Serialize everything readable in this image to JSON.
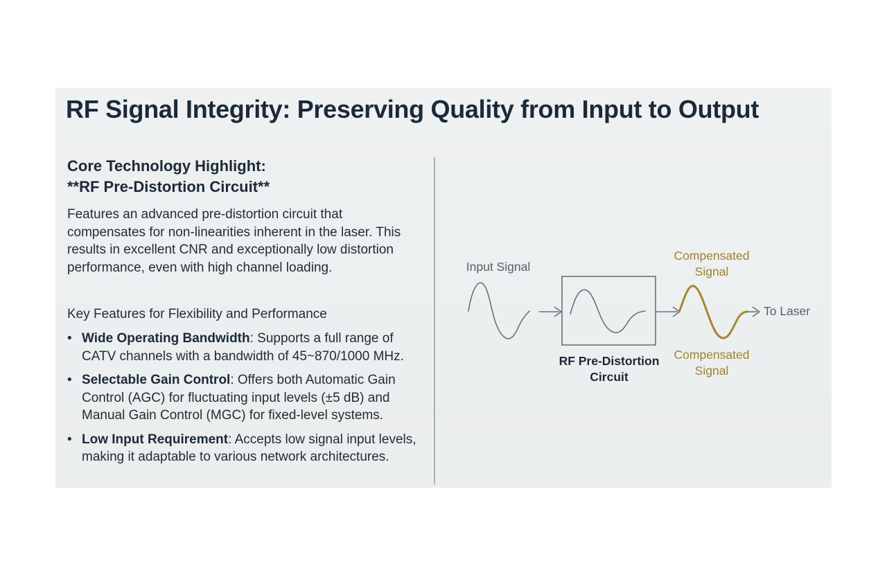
{
  "title": "RF Signal Integrity: Preserving Quality from Input to Output",
  "highlight": {
    "line1": "Core Technology Highlight:",
    "line2": "**RF Pre-Distortion Circuit**"
  },
  "intro": "Features an advanced pre-distortion circuit that compensates for non-linearities inherent in the laser. This results in excellent CNR and exceptionally low distortion performance, even with high channel loading.",
  "features_heading": "Key Features for Flexibility and Performance",
  "features": [
    {
      "name": "Wide Operating Bandwidth",
      "text": ": Supports a full range of CATV channels with a bandwidth of 45~870/1000 MHz."
    },
    {
      "name": "Selectable Gain Control",
      "text": ": Offers both Automatic Gain Control (AGC) for fluctuating input levels (±5 dB) and Manual Gain Control (MGC) for fixed-level systems."
    },
    {
      "name": "Low Input Requirement",
      "text": ": Accepts low signal input levels, making it adaptable to various network architectures."
    }
  ],
  "diagram": {
    "input_label": "Input Signal",
    "box_label_line1": "RF Pre-Distortion",
    "box_label_line2": "Circuit",
    "compensated_top_line1": "Compensated",
    "compensated_top_line2": "Signal",
    "compensated_bottom_line1": "Compensated",
    "compensated_bottom_line2": "Signal",
    "output_label": "To Laser",
    "colors": {
      "gray_line": "#6a7075",
      "gold_signal": "#a8862c",
      "gold_text": "#a18327"
    }
  }
}
